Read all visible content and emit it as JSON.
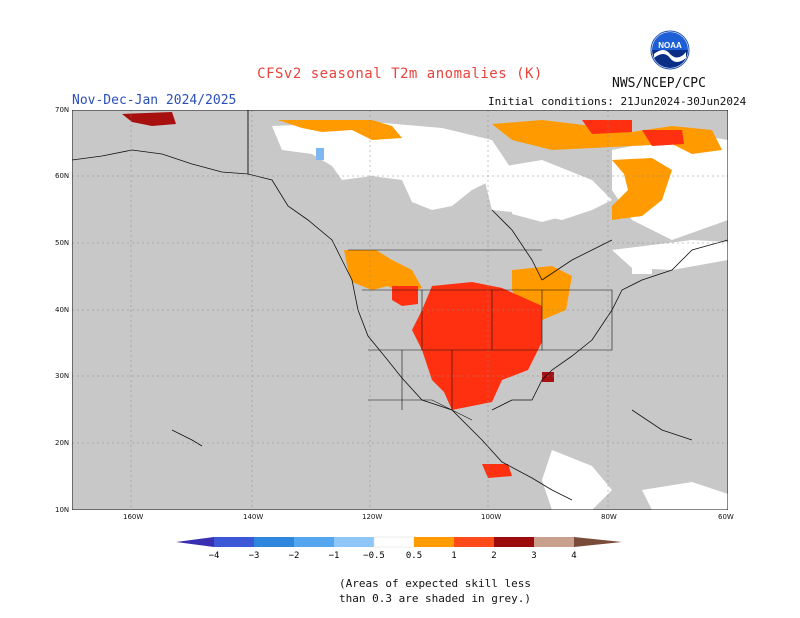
{
  "header": {
    "title": "CFSv2 seasonal T2m anomalies (K)",
    "period": "Nov-Dec-Jan 2024/2025",
    "initial_conditions": "Initial conditions: 21Jun2024-30Jun2024",
    "agency": "NWS/NCEP/CPC",
    "logo_text": "NOAA"
  },
  "axes": {
    "lat_labels": [
      "70N",
      "60N",
      "50N",
      "40N",
      "30N",
      "20N",
      "10N"
    ],
    "lon_labels": [
      "160W",
      "140W",
      "120W",
      "100W",
      "80W",
      "60W"
    ]
  },
  "legend": {
    "labels": [
      "−4",
      "−3",
      "−2",
      "−1",
      "−0.5",
      "0.5",
      "1",
      "2",
      "3",
      "4"
    ],
    "colors": [
      "#3a2fb0",
      "#3d58d6",
      "#2f86dd",
      "#54a6ef",
      "#8ec7f7",
      "#ffffff",
      "#ff9a00",
      "#ff4a1a",
      "#e3210f",
      "#9b0b0b",
      "#c9a08e",
      "#7a4a3a"
    ]
  },
  "colors": {
    "land_masked": "#c8c8c8",
    "no_signal": "#ffffff",
    "warm_05_1": "#ff9a00",
    "warm_1_2": "#ff3010",
    "warm_2_3": "#a80f0f",
    "cool_05_1": "#7fb8f0"
  },
  "footnote": {
    "line1": "(Areas of expected skill less",
    "line2": "than 0.3 are shaded in grey.)"
  }
}
